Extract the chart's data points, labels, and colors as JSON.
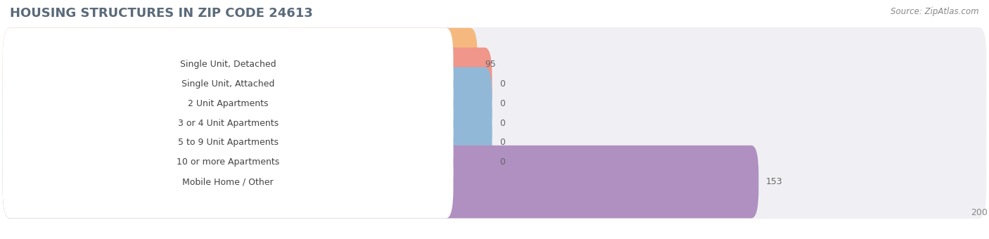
{
  "title": "HOUSING STRUCTURES IN ZIP CODE 24613",
  "source": "Source: ZipAtlas.com",
  "categories": [
    "Single Unit, Detached",
    "Single Unit, Attached",
    "2 Unit Apartments",
    "3 or 4 Unit Apartments",
    "5 to 9 Unit Apartments",
    "10 or more Apartments",
    "Mobile Home / Other"
  ],
  "values": [
    95,
    0,
    0,
    0,
    0,
    0,
    153
  ],
  "bar_colors": [
    "#f5b97f",
    "#f0968a",
    "#92b8d8",
    "#92b8d8",
    "#92b8d8",
    "#92b8d8",
    "#b090c0"
  ],
  "xlim": [
    0,
    200
  ],
  "xticks": [
    0,
    100,
    200
  ],
  "fig_bg_color": "#ffffff",
  "row_bg_color": "#f0f0f4",
  "title_fontsize": 13,
  "label_fontsize": 9,
  "value_fontsize": 9,
  "source_fontsize": 8.5,
  "title_color": "#5a6a7a",
  "label_color": "#444444",
  "value_color": "#666666",
  "source_color": "#888888"
}
